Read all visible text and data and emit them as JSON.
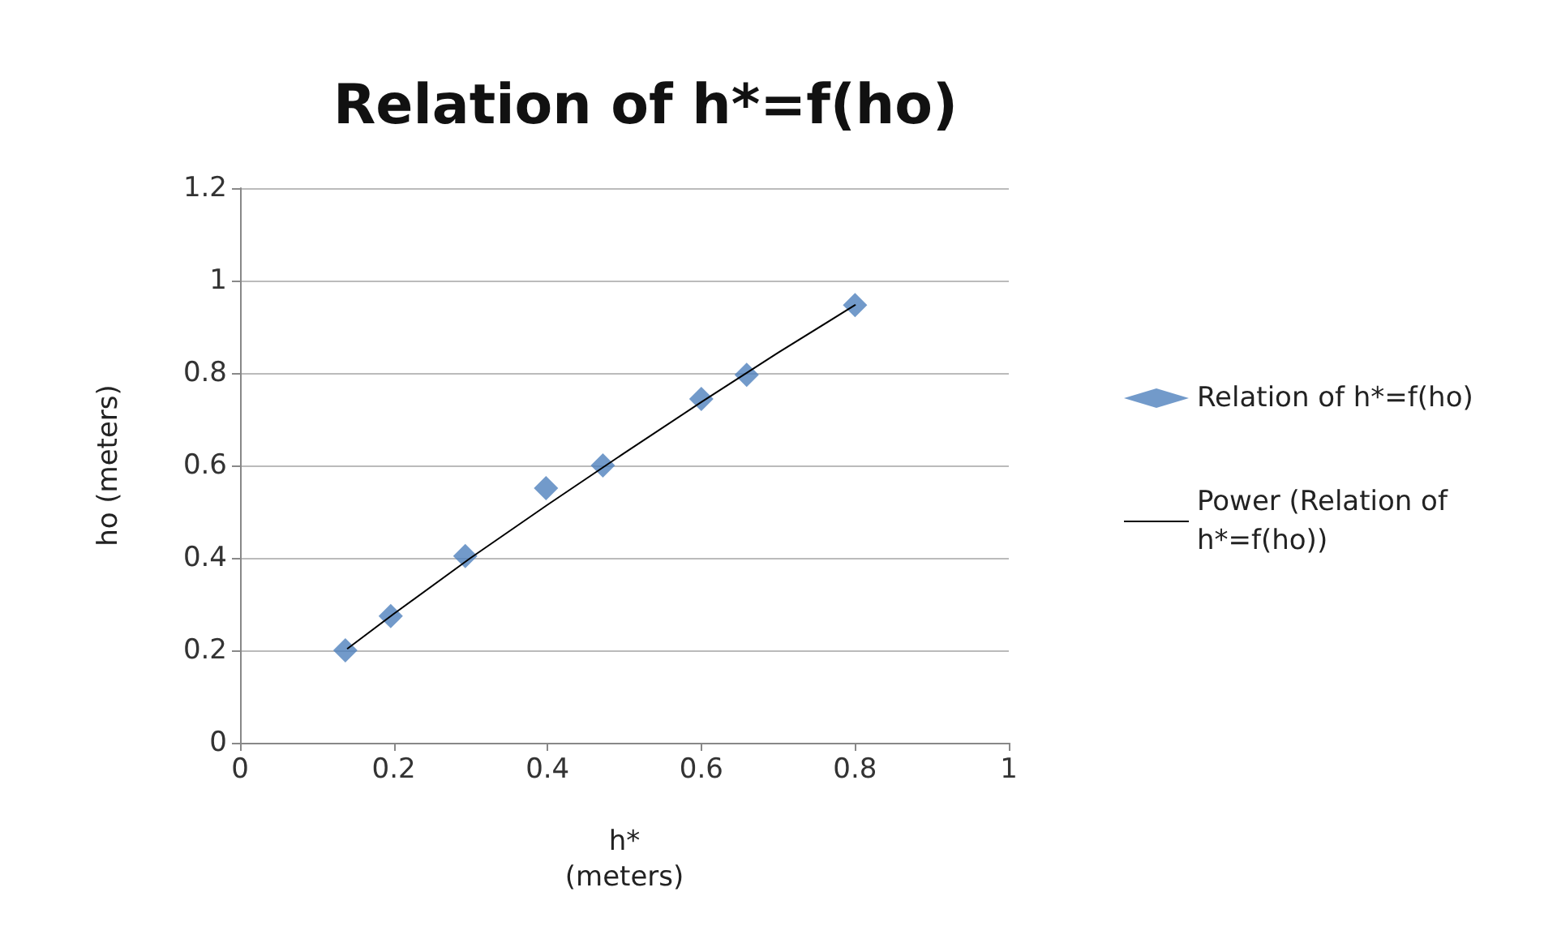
{
  "chart_data": {
    "type": "scatter",
    "title": "Relation of h*=f(ho)",
    "xlabel": "h*\n(meters)",
    "ylabel": "ho (meters)",
    "xlim": [
      0,
      1
    ],
    "xticks": [
      0,
      0.2,
      0.4,
      0.6,
      0.8,
      1
    ],
    "ylim": [
      0,
      1.2
    ],
    "yticks": [
      0,
      0.2,
      0.4,
      0.6,
      0.8,
      1,
      1.2
    ],
    "grid": "y",
    "legend": "right",
    "marker": "diamond",
    "series": [
      {
        "name": "Relation of h*=f(ho)",
        "color": "#4f81bd",
        "x": [
          0.137,
          0.196,
          0.293,
          0.398,
          0.472,
          0.6,
          0.659,
          0.8
        ],
        "values": [
          0.2,
          0.274,
          0.404,
          0.551,
          0.6,
          0.744,
          0.796,
          0.947
        ]
      },
      {
        "name": "Power (Relation of h*=f(ho))",
        "type": "line",
        "color": "#000000",
        "marker": "none",
        "x": [
          0.14,
          0.2,
          0.3,
          0.4,
          0.5,
          0.6,
          0.7,
          0.8
        ],
        "values": [
          0.204,
          0.279,
          0.4,
          0.515,
          0.627,
          0.737,
          0.844,
          0.947
        ]
      }
    ]
  }
}
